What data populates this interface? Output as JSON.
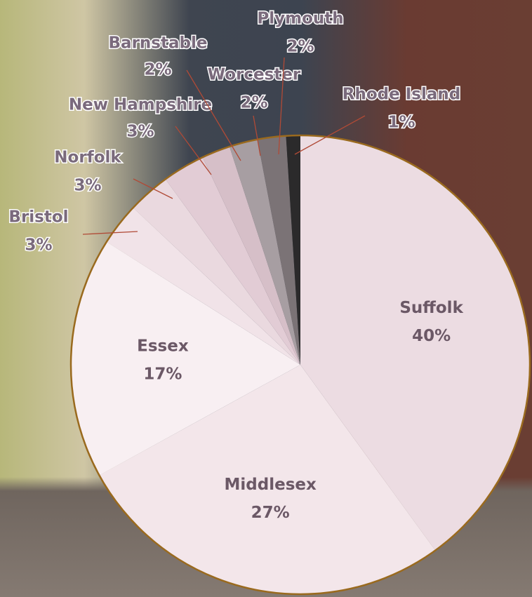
{
  "chart_data": {
    "type": "pie",
    "categories": [
      "Suffolk",
      "Middlesex",
      "Essex",
      "Bristol",
      "Norfolk",
      "New Hampshire",
      "Barnstable",
      "Worcester",
      "Plymouth",
      "Rhode Island"
    ],
    "values": [
      40,
      27,
      17,
      3,
      3,
      3,
      2,
      2,
      2,
      1
    ],
    "value_labels": [
      "40%",
      "27%",
      "17%",
      "3%",
      "3%",
      "3%",
      "2%",
      "2%",
      "2%",
      "1%"
    ],
    "colors": [
      "#ecdce2",
      "#f3e6ea",
      "#f8eff2",
      "#f1e3e8",
      "#ead9df",
      "#e2ccd5",
      "#d6bfc8",
      "#a79ea2",
      "#7b7376",
      "#2b2a2b"
    ],
    "edge_color": "#9a6a1e"
  }
}
